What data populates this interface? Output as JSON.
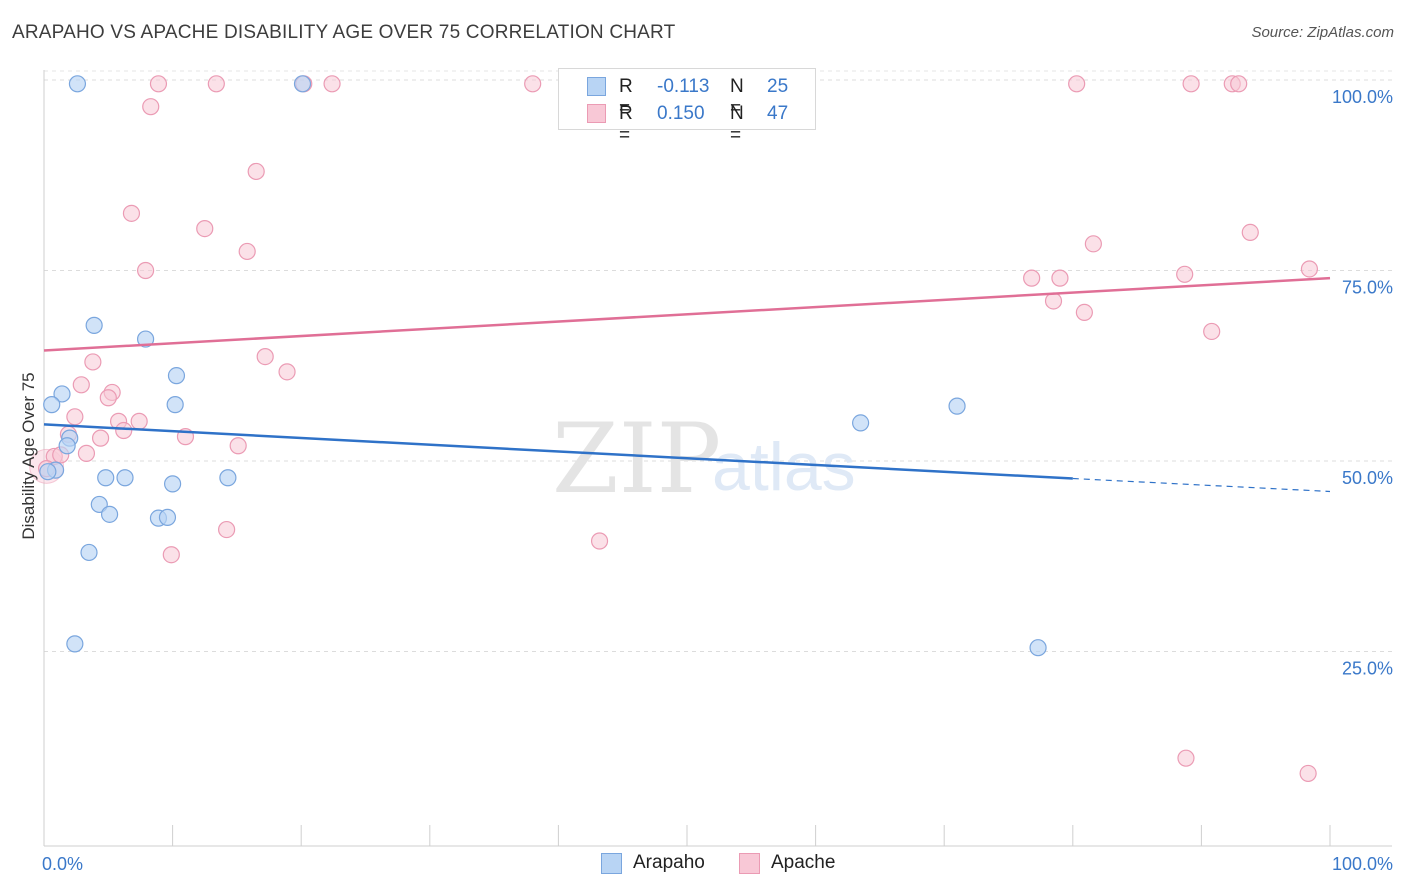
{
  "header": {
    "title": "ARAPAHO VS APACHE DISABILITY AGE OVER 75 CORRELATION CHART",
    "source": "Source: ZipAtlas.com"
  },
  "legend": {
    "arapaho": {
      "r_label": "R =",
      "r_value": "-0.113",
      "n_label": "N =",
      "n_value": "25"
    },
    "apache": {
      "r_label": "R =",
      "r_value": "0.150",
      "n_label": "N =",
      "n_value": "47"
    }
  },
  "bottom_legend": {
    "arapaho": "Arapaho",
    "apache": "Apache"
  },
  "colors": {
    "arapaho_fill": "#b8d4f4",
    "arapaho_stroke": "#7aa6de",
    "arapaho_line": "#2f72c8",
    "apache_fill": "#f8c8d6",
    "apache_stroke": "#eb9bb4",
    "apache_line": "#e06f96",
    "tick_label": "#3a78c9",
    "grid": "#dcdcdc"
  },
  "chart_data": {
    "type": "scatter",
    "title": "ARAPAHO VS APACHE DISABILITY AGE OVER 75 CORRELATION CHART",
    "xlabel": "",
    "ylabel": "Disability Age Over 75",
    "xlim": [
      0,
      100
    ],
    "ylim": [
      0,
      100
    ],
    "x_tick_labels": [
      "0.0%",
      "100.0%"
    ],
    "y_ticks": [
      25,
      50,
      75,
      100
    ],
    "y_tick_labels": [
      "25.0%",
      "50.0%",
      "75.0%",
      "100.0%"
    ],
    "watermark": {
      "zip": "ZIP",
      "atlas": "atlas"
    },
    "series": [
      {
        "name": "Arapaho",
        "r": -0.113,
        "n": 25,
        "trend": {
          "x0": 0,
          "y0": 54.8,
          "x1": 80,
          "y1": 47.7,
          "dash_to_x": 100,
          "dash_to_y": 46.0
        },
        "points": [
          [
            2.6,
            99.5
          ],
          [
            20.1,
            99.5
          ],
          [
            3.9,
            67.8
          ],
          [
            7.9,
            66.0
          ],
          [
            10.3,
            61.2
          ],
          [
            1.4,
            58.8
          ],
          [
            0.6,
            57.4
          ],
          [
            10.2,
            57.4
          ],
          [
            2.0,
            53.0
          ],
          [
            1.8,
            52.0
          ],
          [
            0.9,
            48.8
          ],
          [
            0.3,
            48.6
          ],
          [
            4.8,
            47.8
          ],
          [
            6.3,
            47.8
          ],
          [
            14.3,
            47.8
          ],
          [
            10.0,
            47.0
          ],
          [
            4.3,
            44.3
          ],
          [
            5.1,
            43.0
          ],
          [
            8.9,
            42.5
          ],
          [
            9.6,
            42.6
          ],
          [
            3.5,
            38.0
          ],
          [
            63.5,
            55.0
          ],
          [
            71.0,
            57.2
          ],
          [
            2.4,
            26.0
          ],
          [
            77.3,
            25.5
          ]
        ]
      },
      {
        "name": "Apache",
        "r": 0.15,
        "n": 47,
        "trend": {
          "x0": 0,
          "y0": 64.5,
          "x1": 100,
          "y1": 74.0
        },
        "points": [
          [
            8.9,
            99.5
          ],
          [
            13.4,
            99.5
          ],
          [
            20.2,
            99.5
          ],
          [
            22.4,
            99.5
          ],
          [
            38.0,
            99.5
          ],
          [
            80.3,
            99.5
          ],
          [
            89.2,
            99.5
          ],
          [
            92.4,
            99.5
          ],
          [
            92.9,
            99.5
          ],
          [
            8.3,
            96.5
          ],
          [
            16.5,
            88.0
          ],
          [
            6.8,
            82.5
          ],
          [
            12.5,
            80.5
          ],
          [
            15.8,
            77.5
          ],
          [
            7.9,
            75.0
          ],
          [
            81.6,
            78.5
          ],
          [
            93.8,
            80.0
          ],
          [
            76.8,
            74.0
          ],
          [
            79.0,
            74.0
          ],
          [
            88.7,
            74.5
          ],
          [
            98.4,
            75.2
          ],
          [
            78.5,
            71.0
          ],
          [
            80.9,
            69.5
          ],
          [
            90.8,
            67.0
          ],
          [
            17.2,
            63.7
          ],
          [
            3.8,
            63.0
          ],
          [
            18.9,
            61.7
          ],
          [
            2.9,
            60.0
          ],
          [
            5.3,
            59.0
          ],
          [
            5.0,
            58.3
          ],
          [
            2.4,
            55.8
          ],
          [
            5.8,
            55.2
          ],
          [
            7.4,
            55.2
          ],
          [
            6.2,
            54.0
          ],
          [
            1.9,
            53.5
          ],
          [
            11.0,
            53.2
          ],
          [
            4.4,
            53.0
          ],
          [
            15.1,
            52.0
          ],
          [
            3.3,
            51.0
          ],
          [
            0.8,
            50.6
          ],
          [
            1.3,
            50.8
          ],
          [
            0.2,
            49.0
          ],
          [
            14.2,
            41.0
          ],
          [
            43.2,
            39.5
          ],
          [
            9.9,
            37.7
          ],
          [
            88.8,
            11.0
          ],
          [
            98.3,
            9.0
          ]
        ]
      }
    ]
  }
}
